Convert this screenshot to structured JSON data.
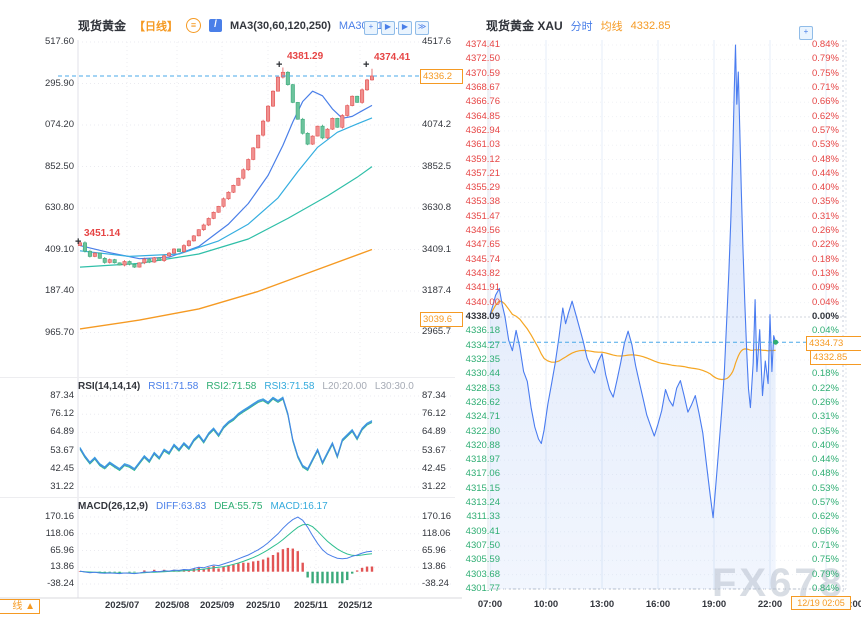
{
  "colors": {
    "red": "#e64545",
    "green": "#2fae73",
    "blue": "#4a7fe8",
    "cyan": "#34aadc",
    "orange": "#f59a23",
    "dark": "#33363d",
    "gray": "#a6abb5",
    "candle_up": "#e25555",
    "candle_down": "#3aa97a",
    "minute_line": "#4a7cf0",
    "avg_line": "#f5a623",
    "watermark": "#b9c2cf"
  },
  "left_chart": {
    "header": {
      "symbol": "现货黄金",
      "period": "【日线】",
      "ma_group": "MA3(30,60,120,250)",
      "ma30": "MA30:4178.9",
      "icons": [
        {
          "name": "compare-icon",
          "glyph": "≡"
        },
        {
          "name": "chart-type-icon",
          "glyph": "/"
        }
      ]
    },
    "toolbar": [
      {
        "name": "crosshair-icon",
        "glyph": "+"
      },
      {
        "name": "play-icon",
        "glyph": "▶"
      },
      {
        "name": "step-forward-icon",
        "glyph": "▶"
      },
      {
        "name": "skip-end-icon",
        "glyph": "≫"
      }
    ],
    "y_axis_left": [
      "517.60",
      "295.90",
      "074.20",
      "852.50",
      "630.80",
      "409.10",
      "187.40",
      "965.70"
    ],
    "y_axis_right": [
      [
        "4517.6",
        0
      ],
      [
        "4074.2",
        2
      ],
      [
        "3852.5",
        3
      ],
      [
        "3630.8",
        4
      ],
      [
        "3409.1",
        5
      ],
      [
        "3187.4",
        6
      ]
    ],
    "y_axis_right_bottom": "2965.7",
    "price_box": "4336.2",
    "ma250_box": "3039.6",
    "annotations": {
      "first_high": "3451.14",
      "peak_high": "4381.29",
      "last_high": "4374.41",
      "marker": "+"
    },
    "x_axis": [
      "2025/07",
      "2025/08",
      "2025/09",
      "2025/10",
      "2025/11",
      "2025/12"
    ],
    "rsi_header": {
      "title": "RSI(14,14,14)",
      "rsi1": "RSI1:71.58",
      "rsi2": "RSI2:71.58",
      "rsi3": "RSI3:71.58",
      "l20": "L20:20.00",
      "l30": "L30:30.0"
    },
    "rsi_axis": [
      "87.34",
      "76.12",
      "64.89",
      "53.67",
      "42.45",
      "31.22"
    ],
    "macd_header": {
      "title": "MACD(26,12,9)",
      "diff": "DIFF:63.83",
      "dea": "DEA:55.75",
      "macd": "MACD:16.17"
    },
    "macd_axis": [
      "170.16",
      "118.06",
      "65.96",
      "13.86",
      "-38.24"
    ],
    "period_button": "线 ▲"
  },
  "right_chart": {
    "header": {
      "symbol": "现货黄金 XAU",
      "mode": "分时",
      "avg_label": "均线",
      "avg_value": "4332.85"
    },
    "corner_icon": {
      "name": "panel-toggle-icon",
      "glyph": "+"
    },
    "price_labels": [
      "4374.41",
      "4372.50",
      "4370.59",
      "4368.67",
      "4366.76",
      "4364.85",
      "4362.94",
      "4361.03",
      "4359.12",
      "4357.21",
      "4355.29",
      "4353.38",
      "4351.47",
      "4349.56",
      "4347.65",
      "4345.74",
      "4343.82",
      "4341.91",
      "4340.00",
      "4338.09",
      "4336.18",
      "4334.27",
      "4332.35",
      "4330.44",
      "4328.53",
      "4326.62",
      "4324.71",
      "4322.80",
      "4320.88",
      "4318.97",
      "4317.06",
      "4315.15",
      "4313.24",
      "4311.33",
      "4309.41",
      "4307.50",
      "4305.59",
      "4303.68",
      "4301.77"
    ],
    "base_index": 19,
    "pct_labels": [
      "0.84%",
      "0.79%",
      "0.75%",
      "0.71%",
      "0.66%",
      "0.62%",
      "0.57%",
      "0.53%",
      "0.48%",
      "0.44%",
      "0.40%",
      "0.35%",
      "0.31%",
      "0.26%",
      "0.22%",
      "0.18%",
      "0.13%",
      "0.09%",
      "0.04%",
      "0.00%",
      "0.04%",
      "0.09%",
      "0.13%",
      "0.18%",
      "0.22%",
      "0.26%",
      "0.31%",
      "0.35%",
      "0.40%",
      "0.44%",
      "0.48%",
      "0.53%",
      "0.57%",
      "0.62%",
      "0.66%",
      "0.71%",
      "0.75%",
      "0.79%",
      "0.84%"
    ],
    "time_labels": [
      "07:00",
      "10:00",
      "13:00",
      "16:00",
      "19:00",
      "22:00",
      "01:00"
    ],
    "crosshair_time": "12/19 02:05",
    "partial_time": "5:00",
    "current_price_box": "4334.73",
    "avg_price_box": "4332.85",
    "watermark": "FX678"
  },
  "chart_data": [
    {
      "type": "candlestick",
      "title": "现货黄金 日线",
      "x_ticks": [
        "2025/07",
        "2025/08",
        "2025/09",
        "2025/10",
        "2025/11",
        "2025/12"
      ],
      "ylim": [
        2965.7,
        4517.6
      ],
      "first_open": 3430,
      "closes": [
        3445,
        3400,
        3372,
        3390,
        3362,
        3340,
        3355,
        3338,
        3326,
        3345,
        3330,
        3315,
        3338,
        3358,
        3342,
        3365,
        3350,
        3375,
        3390,
        3412,
        3398,
        3430,
        3455,
        3482,
        3515,
        3540,
        3575,
        3608,
        3640,
        3680,
        3715,
        3752,
        3790,
        3835,
        3890,
        3952,
        4020,
        4095,
        4175,
        4255,
        4330,
        4356,
        4290,
        4195,
        4105,
        4030,
        3972,
        4015,
        4068,
        4005,
        4052,
        4110,
        4062,
        4125,
        4178,
        4228,
        4195,
        4262,
        4315,
        4336.2
      ],
      "special_highs": {
        "0": 3451.14,
        "41": 4381.29,
        "59": 4374.41
      },
      "current_price": 4336.2,
      "ma_lines": [
        {
          "name": "MA30",
          "color": "#4a7fe8",
          "points": [
            [
              0,
              3430
            ],
            [
              6,
              3392
            ],
            [
              12,
              3360
            ],
            [
              18,
              3368
            ],
            [
              24,
              3425
            ],
            [
              30,
              3545
            ],
            [
              34,
              3655
            ],
            [
              38,
              3805
            ],
            [
              41,
              3965
            ],
            [
              43,
              4090
            ],
            [
              45,
              4200
            ],
            [
              47,
              4255
            ],
            [
              49,
              4230
            ],
            [
              51,
              4160
            ],
            [
              53,
              4110
            ],
            [
              55,
              4120
            ],
            [
              57,
              4150
            ],
            [
              59,
              4178.9
            ]
          ]
        },
        {
          "name": "MA60",
          "color": "#35aee0",
          "points": [
            [
              0,
              3402
            ],
            [
              10,
              3372
            ],
            [
              20,
              3385
            ],
            [
              28,
              3455
            ],
            [
              34,
              3545
            ],
            [
              40,
              3685
            ],
            [
              44,
              3825
            ],
            [
              48,
              3955
            ],
            [
              52,
              4035
            ],
            [
              56,
              4080
            ],
            [
              59,
              4112
            ]
          ]
        },
        {
          "name": "MA120",
          "color": "#2fbfa8",
          "points": [
            [
              0,
              3315
            ],
            [
              12,
              3335
            ],
            [
              24,
              3385
            ],
            [
              34,
              3465
            ],
            [
              42,
              3575
            ],
            [
              50,
              3695
            ],
            [
              56,
              3795
            ],
            [
              59,
              3852
            ]
          ]
        },
        {
          "name": "MA250",
          "color": "#f59a23",
          "points": [
            [
              0,
              2985
            ],
            [
              12,
              3032
            ],
            [
              24,
              3092
            ],
            [
              36,
              3185
            ],
            [
              48,
              3302
            ],
            [
              59,
              3409
            ]
          ]
        }
      ]
    },
    {
      "type": "line",
      "title": "RSI(14,14,14)",
      "ylim": [
        31.22,
        87.34
      ],
      "value_now": 71.58,
      "values": [
        55,
        50,
        46,
        49,
        45,
        43,
        46,
        44,
        42,
        45,
        44,
        42,
        46,
        50,
        47,
        52,
        49,
        54,
        52,
        57,
        54,
        58,
        55,
        60,
        63,
        59,
        64,
        67,
        63,
        68,
        71,
        73,
        76,
        78,
        80,
        82,
        84,
        85,
        83,
        86,
        84,
        86,
        76,
        60,
        50,
        44,
        42,
        48,
        54,
        46,
        52,
        58,
        50,
        60,
        63,
        66,
        61,
        67,
        70,
        71.58
      ]
    },
    {
      "type": "macd",
      "title": "MACD(26,12,9)",
      "ylim": [
        -38.24,
        170.16
      ],
      "diff_now": 63.83,
      "dea_now": 55.75,
      "macd_now": 16.17,
      "diff": [
        2,
        -1,
        -3,
        -2,
        -4,
        -5,
        -4,
        -5,
        -6,
        -4,
        -5,
        -6,
        -4,
        -1,
        -2,
        1,
        0,
        3,
        2,
        5,
        4,
        7,
        6,
        10,
        14,
        12,
        17,
        21,
        19,
        24,
        29,
        34,
        40,
        46,
        52,
        60,
        68,
        78,
        90,
        104,
        118,
        135,
        150,
        162,
        170,
        160,
        138,
        112,
        88,
        68,
        55,
        48,
        42,
        40,
        42,
        48,
        52,
        58,
        62,
        63.83
      ],
      "dea": [
        1,
        0,
        -1,
        -2,
        -2,
        -3,
        -3,
        -4,
        -4,
        -4,
        -4,
        -5,
        -4,
        -3,
        -2,
        -2,
        -1,
        0,
        1,
        2,
        2,
        3,
        4,
        5,
        7,
        8,
        10,
        12,
        14,
        16,
        19,
        23,
        27,
        32,
        38,
        44,
        51,
        59,
        68,
        78,
        88,
        100,
        113,
        126,
        138,
        146,
        147,
        140,
        126,
        110,
        95,
        82,
        71,
        62,
        55,
        51,
        50,
        52,
        54,
        55.75
      ]
    },
    {
      "type": "area-line",
      "title": "现货黄金 XAU 分时",
      "base_price": 4338.09,
      "current_price": 4334.73,
      "avg_price": 4332.85,
      "ylim": [
        4301.77,
        4374.41
      ],
      "x_unit": "hours_after_0700",
      "points": [
        [
          0,
          4338.4
        ],
        [
          0.15,
          4339.6
        ],
        [
          0.3,
          4341.0
        ],
        [
          0.5,
          4341.9
        ],
        [
          0.65,
          4339.8
        ],
        [
          0.8,
          4338.2
        ],
        [
          1.0,
          4335.0
        ],
        [
          1.2,
          4333.6
        ],
        [
          1.4,
          4336.3
        ],
        [
          1.6,
          4334.0
        ],
        [
          1.8,
          4330.8
        ],
        [
          2.0,
          4329.5
        ],
        [
          2.2,
          4326.0
        ],
        [
          2.4,
          4323.4
        ],
        [
          2.6,
          4321.8
        ],
        [
          2.75,
          4321.2
        ],
        [
          2.9,
          4323.0
        ],
        [
          3.1,
          4326.5
        ],
        [
          3.3,
          4329.2
        ],
        [
          3.5,
          4332.0
        ],
        [
          3.7,
          4335.5
        ],
        [
          3.9,
          4339.3
        ],
        [
          4.05,
          4337.2
        ],
        [
          4.2,
          4338.6
        ],
        [
          4.4,
          4340.2
        ],
        [
          4.6,
          4338.4
        ],
        [
          4.8,
          4336.6
        ],
        [
          5.0,
          4334.8
        ],
        [
          5.2,
          4332.6
        ],
        [
          5.4,
          4331.4
        ],
        [
          5.6,
          4330.6
        ],
        [
          5.8,
          4332.2
        ],
        [
          6.0,
          4333.2
        ],
        [
          6.2,
          4330.4
        ],
        [
          6.4,
          4328.4
        ],
        [
          6.6,
          4327.4
        ],
        [
          6.8,
          4329.6
        ],
        [
          7.0,
          4332.0
        ],
        [
          7.2,
          4334.6
        ],
        [
          7.4,
          4336.2
        ],
        [
          7.6,
          4334.4
        ],
        [
          7.8,
          4331.6
        ],
        [
          8.0,
          4329.4
        ],
        [
          8.2,
          4327.2
        ],
        [
          8.4,
          4325.0
        ],
        [
          8.6,
          4323.6
        ],
        [
          8.8,
          4322.2
        ],
        [
          9.0,
          4323.8
        ],
        [
          9.2,
          4325.6
        ],
        [
          9.4,
          4328.4
        ],
        [
          9.6,
          4327.0
        ],
        [
          9.8,
          4326.2
        ],
        [
          10.0,
          4328.6
        ],
        [
          10.2,
          4329.6
        ],
        [
          10.4,
          4327.6
        ],
        [
          10.6,
          4325.4
        ],
        [
          10.8,
          4326.4
        ],
        [
          11.0,
          4327.6
        ],
        [
          11.2,
          4325.2
        ],
        [
          11.4,
          4322.6
        ],
        [
          11.6,
          4318.4
        ],
        [
          11.8,
          4314.2
        ],
        [
          11.95,
          4311.3
        ],
        [
          12.1,
          4315.8
        ],
        [
          12.25,
          4320.4
        ],
        [
          12.4,
          4325.2
        ],
        [
          12.55,
          4330.6
        ],
        [
          12.7,
          4338.8
        ],
        [
          12.8,
          4344.2
        ],
        [
          12.9,
          4351.0
        ],
        [
          13.0,
          4359.5
        ],
        [
          13.08,
          4368.0
        ],
        [
          13.15,
          4374.4
        ],
        [
          13.22,
          4366.5
        ],
        [
          13.3,
          4370.8
        ],
        [
          13.38,
          4363.0
        ],
        [
          13.46,
          4355.0
        ],
        [
          13.55,
          4347.5
        ],
        [
          13.65,
          4340.0
        ],
        [
          13.75,
          4333.5
        ],
        [
          13.85,
          4328.5
        ],
        [
          13.95,
          4326.0
        ],
        [
          14.1,
          4332.0
        ],
        [
          14.2,
          4340.4
        ],
        [
          14.3,
          4330.8
        ],
        [
          14.45,
          4336.4
        ],
        [
          14.6,
          4327.6
        ],
        [
          14.75,
          4332.2
        ],
        [
          14.9,
          4329.2
        ],
        [
          15.0,
          4338.4
        ],
        [
          15.1,
          4330.8
        ],
        [
          15.2,
          4335.6
        ],
        [
          15.3,
          4334.73
        ]
      ]
    }
  ]
}
